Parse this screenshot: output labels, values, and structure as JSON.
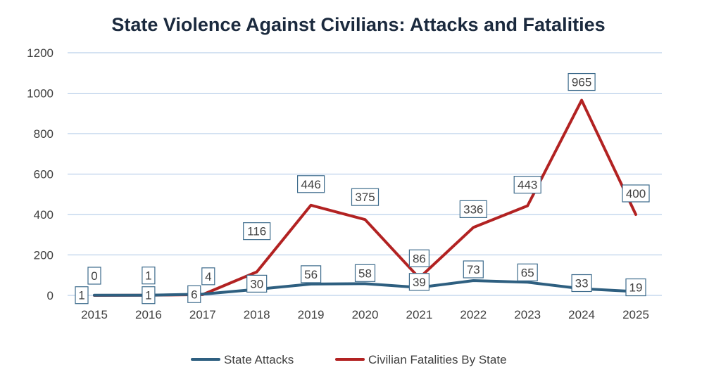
{
  "chart_data": {
    "type": "line",
    "title": "State Violence Against Civilians: Attacks and Fatalities",
    "xlabel": "",
    "ylabel": "",
    "categories": [
      "2015",
      "2016",
      "2017",
      "2018",
      "2019",
      "2020",
      "2021",
      "2022",
      "2023",
      "2024",
      "2025"
    ],
    "ylim": [
      0,
      1200
    ],
    "yticks": [
      "0",
      "200",
      "400",
      "600",
      "800",
      "1000",
      "1200"
    ],
    "grid": true,
    "legend_position": "bottom",
    "series": [
      {
        "name": "State Attacks",
        "color": "#2e5f80",
        "values": [
          1,
          1,
          6,
          30,
          56,
          58,
          39,
          73,
          65,
          33,
          19
        ],
        "labels": [
          "1",
          "1",
          "6",
          "30",
          "56",
          "58",
          "39",
          "73",
          "65",
          "33",
          "19"
        ]
      },
      {
        "name": "Civilian Fatalities By State",
        "color": "#b22222",
        "values": [
          0,
          1,
          4,
          116,
          446,
          375,
          86,
          336,
          443,
          965,
          400
        ],
        "labels": [
          "0",
          "1",
          "4",
          "116",
          "446",
          "375",
          "86",
          "336",
          "443",
          "965",
          "400"
        ]
      }
    ]
  },
  "colors": {
    "title": "#1b2a3e",
    "grid": "#a9c4e4",
    "text": "#404040",
    "label_border": "#3d6b8c"
  }
}
